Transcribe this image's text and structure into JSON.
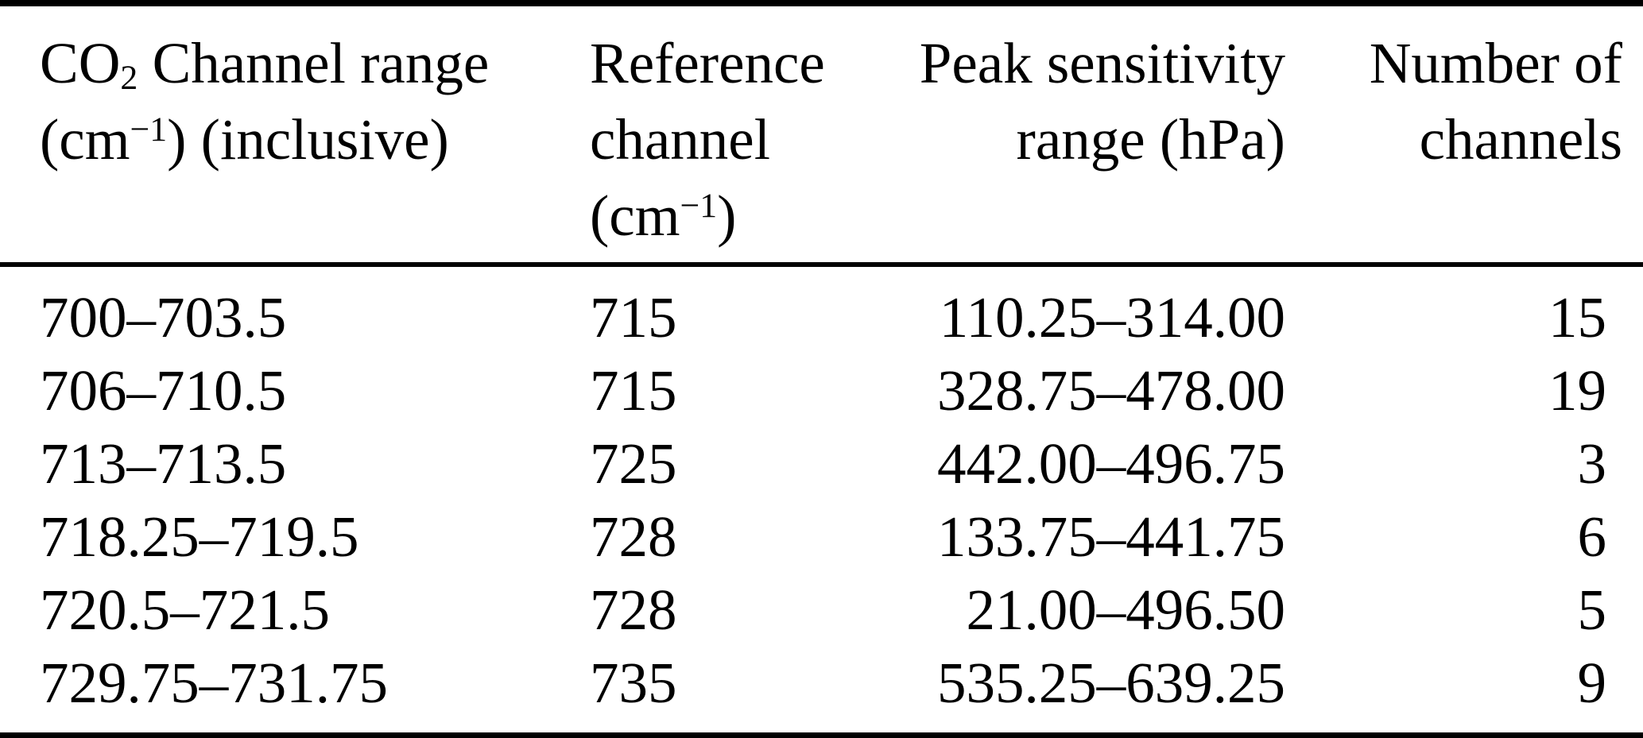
{
  "table": {
    "header": {
      "col1": {
        "line1_pre": "CO",
        "line1_sub": "2",
        "line1_post": " Channel range",
        "line2_pre": "(cm",
        "line2_sup": "−1",
        "line2_post": ") (inclusive)"
      },
      "col2": {
        "line1": "Reference",
        "line2": "channel",
        "line3_pre": "(cm",
        "line3_sup": "−1",
        "line3_post": ")"
      },
      "col3": {
        "line1": "Peak sensitivity",
        "line2": "range (hPa)"
      },
      "col4": {
        "line1": "Number of",
        "line2": "channels"
      }
    },
    "rows": [
      [
        "700–703.5",
        "715",
        "110.25–314.00",
        "15"
      ],
      [
        "706–710.5",
        "715",
        "328.75–478.00",
        "19"
      ],
      [
        "713–713.5",
        "725",
        "442.00–496.75",
        "3"
      ],
      [
        "718.25–719.5",
        "728",
        "133.75–441.75",
        "6"
      ],
      [
        "720.5–721.5",
        "728",
        "21.00–496.50",
        "5"
      ],
      [
        "729.75–731.75",
        "735",
        "535.25–639.25",
        "9"
      ]
    ]
  },
  "colors": {
    "text": "#000000",
    "rule": "#000000",
    "background": "#ffffff"
  }
}
